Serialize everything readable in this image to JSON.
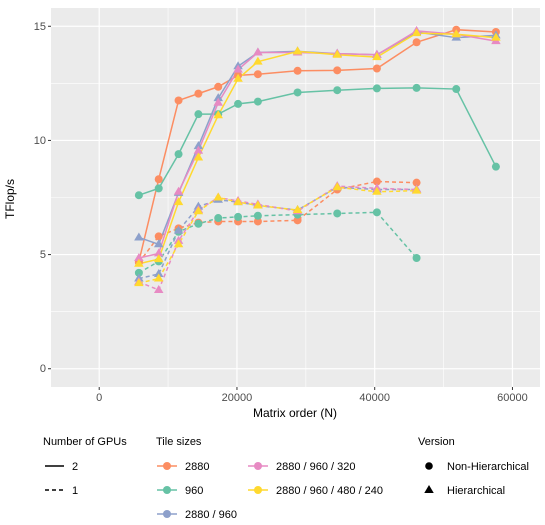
{
  "chart_data": {
    "type": "line",
    "xlabel": "Matrix order (N)",
    "ylabel": "TFlop/s",
    "xlim": [
      -7000,
      64000
    ],
    "ylim": [
      -0.8,
      15.8
    ],
    "x_ticks": [
      0,
      20000,
      40000,
      60000
    ],
    "x_tick_labels": [
      "0",
      "20000",
      "40000",
      "60000"
    ],
    "y_ticks": [
      0,
      5,
      10,
      15
    ],
    "y_tick_labels": [
      "0",
      "5",
      "10",
      "15"
    ],
    "grid": true,
    "legend_position": "bottom",
    "legend": {
      "gpus": {
        "title": "Number of GPUs",
        "items": [
          {
            "label": "2",
            "linetype": "solid"
          },
          {
            "label": "1",
            "linetype": "dashed"
          }
        ]
      },
      "tiles": {
        "title": "Tile sizes",
        "items": [
          {
            "label": "2880",
            "color": "#FC8D62"
          },
          {
            "label": "960",
            "color": "#66C2A5"
          },
          {
            "label": "2880 / 960",
            "color": "#8DA0CB"
          },
          {
            "label": "2880 / 960 / 320",
            "color": "#E78AC3"
          },
          {
            "label": "2880 / 960 / 480 / 240",
            "color": "#FFD92F"
          }
        ]
      },
      "version": {
        "title": "Version",
        "items": [
          {
            "label": "Non-Hierarchical",
            "shape": "circle"
          },
          {
            "label": "Hierarchical",
            "shape": "triangle"
          }
        ]
      }
    },
    "series": [
      {
        "tile": "2880",
        "gpus": "2",
        "version": "Non-Hierarchical",
        "color": "#FC8D62",
        "dash": false,
        "shape": "circle",
        "x": [
          5760,
          8640,
          11520,
          14400,
          17280,
          20160,
          23040,
          28800,
          34560,
          40320,
          46080,
          51840,
          57600
        ],
        "y": [
          4.7,
          8.3,
          11.75,
          12.05,
          12.35,
          12.85,
          12.9,
          13.05,
          13.07,
          13.15,
          14.3,
          14.85,
          14.75
        ]
      },
      {
        "tile": "2880",
        "gpus": "1",
        "version": "Non-Hierarchical",
        "color": "#FC8D62",
        "dash": true,
        "shape": "circle",
        "x": [
          5760,
          8640,
          11520,
          14400,
          17280,
          20160,
          23040,
          28800,
          34560,
          40320,
          46080
        ],
        "y": [
          4.65,
          5.8,
          6.15,
          6.4,
          6.45,
          6.45,
          6.45,
          6.5,
          7.85,
          8.2,
          8.15
        ]
      },
      {
        "tile": "960",
        "gpus": "2",
        "version": "Non-Hierarchical",
        "color": "#66C2A5",
        "dash": false,
        "shape": "circle",
        "x": [
          5760,
          8640,
          11520,
          14400,
          17280,
          20160,
          23040,
          28800,
          34560,
          40320,
          46080,
          51840,
          57600
        ],
        "y": [
          7.6,
          7.9,
          9.4,
          11.15,
          11.15,
          11.6,
          11.7,
          12.1,
          12.2,
          12.28,
          12.3,
          12.25,
          8.85
        ]
      },
      {
        "tile": "960",
        "gpus": "1",
        "version": "Non-Hierarchical",
        "color": "#66C2A5",
        "dash": true,
        "shape": "circle",
        "x": [
          5760,
          8640,
          11520,
          14400,
          17280,
          20160,
          23040,
          28800,
          34560,
          40320,
          46080
        ],
        "y": [
          4.2,
          4.7,
          6.0,
          6.35,
          6.6,
          6.65,
          6.7,
          6.75,
          6.8,
          6.85,
          4.85
        ]
      },
      {
        "tile": "2880 / 960",
        "gpus": "2",
        "version": "Hierarchical",
        "color": "#8DA0CB",
        "dash": false,
        "shape": "triangle",
        "x": [
          5760,
          8640,
          11520,
          14400,
          17280,
          20160,
          23040,
          28800,
          34560,
          40320,
          46080,
          51840,
          57600
        ],
        "y": [
          5.75,
          5.45,
          7.7,
          9.75,
          11.85,
          13.25,
          13.85,
          13.9,
          13.8,
          13.75,
          14.75,
          14.5,
          14.6
        ]
      },
      {
        "tile": "2880 / 960",
        "gpus": "1",
        "version": "Hierarchical",
        "color": "#8DA0CB",
        "dash": true,
        "shape": "triangle",
        "x": [
          5760,
          8640,
          11520,
          14400,
          17280,
          20160,
          23040,
          28800,
          34560,
          40320,
          46080
        ],
        "y": [
          3.95,
          4.15,
          6.05,
          7.1,
          7.4,
          7.3,
          7.15,
          6.95,
          7.95,
          7.85,
          7.85
        ]
      },
      {
        "tile": "2880 / 960 / 320",
        "gpus": "2",
        "version": "Hierarchical",
        "color": "#E78AC3",
        "dash": false,
        "shape": "triangle",
        "x": [
          5760,
          8640,
          11520,
          14400,
          17280,
          20160,
          23040,
          28800,
          34560,
          40320,
          46080,
          51840,
          57600
        ],
        "y": [
          4.85,
          5.05,
          7.75,
          9.55,
          11.65,
          13.1,
          13.85,
          13.85,
          13.8,
          13.75,
          14.8,
          14.65,
          14.35
        ]
      },
      {
        "tile": "2880 / 960 / 320",
        "gpus": "1",
        "version": "Hierarchical",
        "color": "#E78AC3",
        "dash": true,
        "shape": "triangle",
        "x": [
          5760,
          8640,
          11520,
          14400,
          17280,
          20160,
          23040,
          28800,
          34560,
          40320,
          46080
        ],
        "y": [
          3.8,
          3.45,
          5.6,
          6.95,
          7.5,
          7.35,
          7.2,
          6.9,
          8.0,
          7.9,
          7.85
        ]
      },
      {
        "tile": "2880 / 960 / 480 / 240",
        "gpus": "2",
        "version": "Hierarchical",
        "color": "#FFD92F",
        "dash": false,
        "shape": "triangle",
        "x": [
          5760,
          8640,
          11520,
          14400,
          17280,
          20160,
          23040,
          28800,
          34560,
          40320,
          46080,
          51840,
          57600
        ],
        "y": [
          4.6,
          4.8,
          7.3,
          9.25,
          11.1,
          12.7,
          13.45,
          13.9,
          13.75,
          13.65,
          14.7,
          14.65,
          14.5
        ]
      },
      {
        "tile": "2880 / 960 / 480 / 240",
        "gpus": "1",
        "version": "Hierarchical",
        "color": "#FFD92F",
        "dash": true,
        "shape": "triangle",
        "x": [
          5760,
          8640,
          11520,
          14400,
          17280,
          20160,
          23040,
          28800,
          34560,
          40320,
          46080
        ],
        "y": [
          3.75,
          3.95,
          5.45,
          6.9,
          7.5,
          7.3,
          7.15,
          6.95,
          7.95,
          7.75,
          7.8
        ]
      }
    ]
  }
}
